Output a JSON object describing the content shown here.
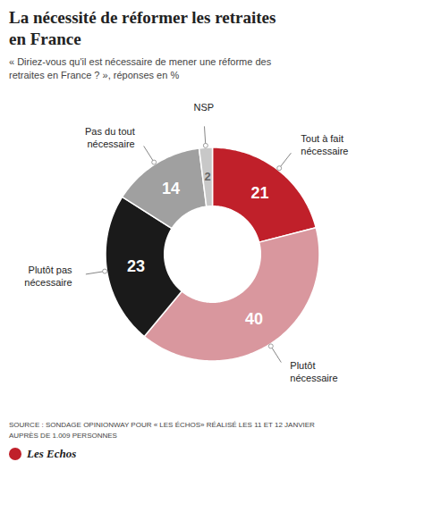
{
  "chart_data": {
    "type": "pie",
    "title": "La nécessité de réformer les retraites\nen France",
    "subtitle": "« Diriez-vous qu'il est nécessaire de mener une réforme des\nretraites en France ? », réponses en %",
    "source": "SOURCE : SONDAGE OPINIONWAY POUR « LES ÉCHOS» RÉALISÉ LES 11 ET 12 JANVIER\nAUPRÈS DE 1.009 PERSONNES",
    "annotations": [
      "Les Echos"
    ],
    "categories": [
      "Tout à fait\nnécessaire",
      "Plutôt\nnécessaire",
      "Plutôt pas\nnécessaire",
      "Pas du tout\nnécessaire",
      "NSP"
    ],
    "values": [
      21,
      40,
      23,
      14,
      2
    ],
    "colors": [
      "#c0202a",
      "#d9979e",
      "#1a1a1a",
      "#a0a0a0",
      "#c8c8c8"
    ],
    "data_labels": true
  }
}
